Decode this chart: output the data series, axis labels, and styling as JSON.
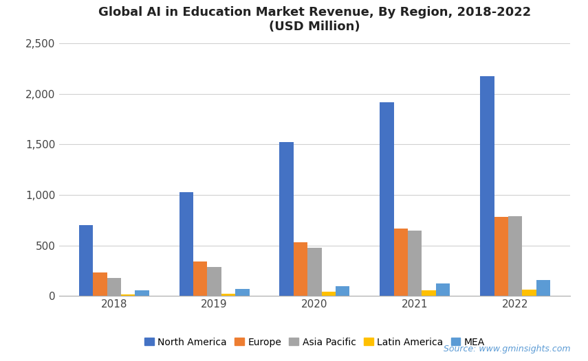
{
  "title": "Global AI in Education Market Revenue, By Region, 2018-2022\n(USD Million)",
  "years": [
    2018,
    2019,
    2020,
    2021,
    2022
  ],
  "regions": [
    "North America",
    "Europe",
    "Asia Pacific",
    "Latin America",
    "MEA"
  ],
  "colors": [
    "#4472C4",
    "#ED7D31",
    "#A5A5A5",
    "#FFC000",
    "#5B9BD5"
  ],
  "data": {
    "North America": [
      700,
      1030,
      1520,
      1920,
      2175
    ],
    "Europe": [
      235,
      345,
      530,
      670,
      785
    ],
    "Asia Pacific": [
      180,
      285,
      475,
      650,
      790
    ],
    "Latin America": [
      15,
      20,
      40,
      55,
      65
    ],
    "MEA": [
      55,
      70,
      100,
      125,
      155
    ]
  },
  "ylim": [
    0,
    2500
  ],
  "yticks": [
    0,
    500,
    1000,
    1500,
    2000,
    2500
  ],
  "ytick_labels": [
    "0",
    "500",
    "1,000",
    "1,500",
    "2,000",
    "2,500"
  ],
  "source_text": "Source: www.gminsights.com",
  "background_color": "#ffffff",
  "bar_width": 0.14
}
